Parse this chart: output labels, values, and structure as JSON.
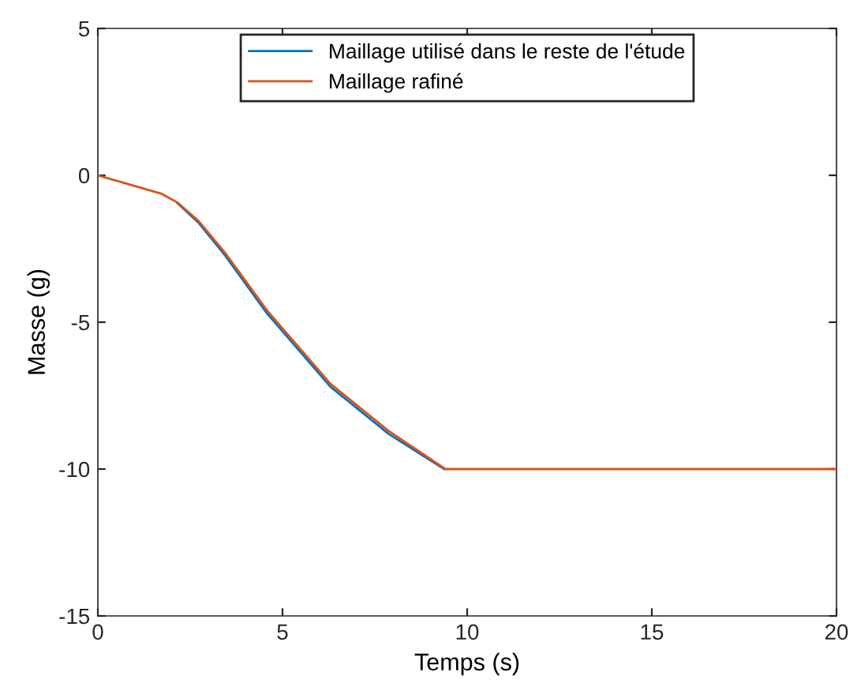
{
  "chart_data": {
    "type": "line",
    "xlabel": "Temps (s)",
    "ylabel": "Masse (g)",
    "xlim": [
      0,
      20
    ],
    "ylim": [
      -15,
      5
    ],
    "xticks": [
      0,
      5,
      10,
      15,
      20
    ],
    "yticks": [
      -15,
      -10,
      -5,
      0,
      5
    ],
    "grid": false,
    "legend": "top",
    "line_style": "solid",
    "marker": "none",
    "series": [
      {
        "name": "Maillage utilisé dans le reste de l'étude",
        "color": "#0072bd",
        "x": [
          2.16,
          2.73,
          3.44,
          4.58,
          6.3,
          7.87,
          9.38
        ],
        "values": [
          -0.95,
          -1.62,
          -2.72,
          -4.7,
          -7.2,
          -8.8,
          -10
        ]
      },
      {
        "name": "Maillage rafiné",
        "color": "#d95319",
        "x": [
          0,
          1.73,
          2.16,
          2.73,
          3.44,
          4.58,
          6.3,
          7.87,
          9.41,
          20
        ],
        "values": [
          0,
          -0.63,
          -0.93,
          -1.56,
          -2.63,
          -4.6,
          -7.1,
          -8.7,
          -10,
          -10
        ]
      }
    ]
  }
}
